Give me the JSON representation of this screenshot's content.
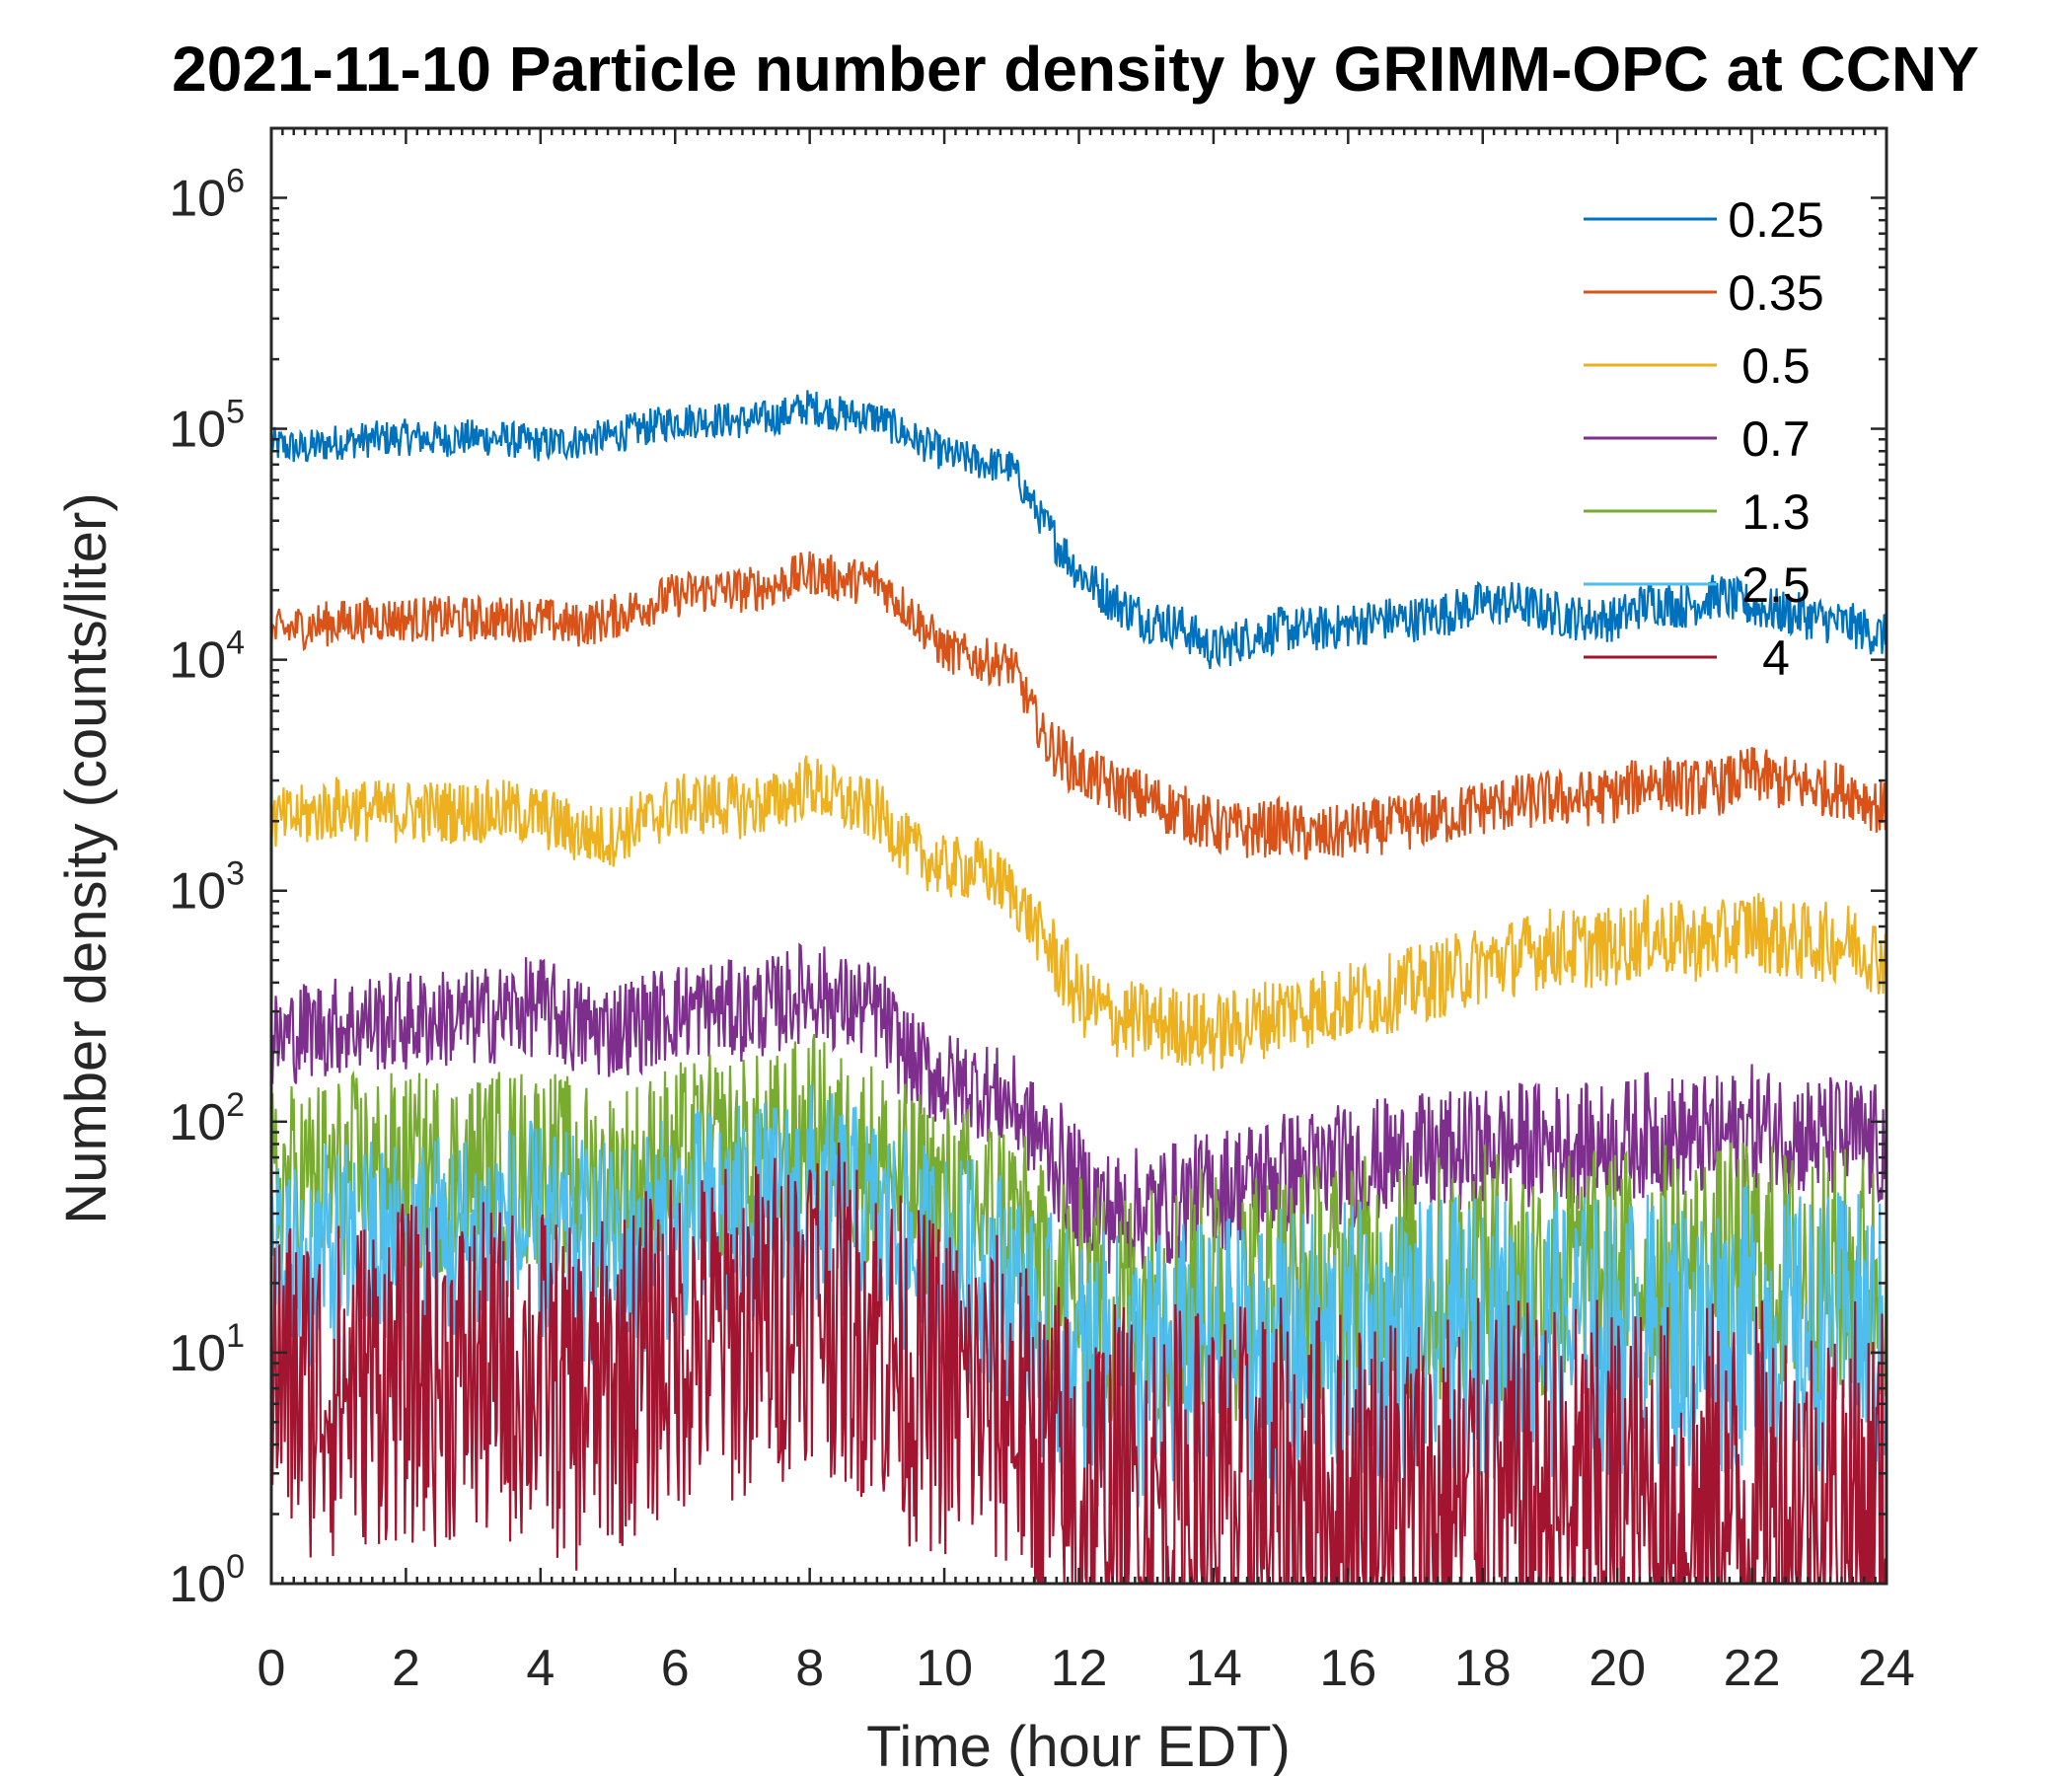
{
  "chart_data": {
    "type": "line",
    "title": "2021-11-10 Particle number density by GRIMM-OPC at CCNY",
    "xlabel": "Time (hour EDT)",
    "ylabel": "Number density (counts/liter)",
    "xlim": [
      0,
      24
    ],
    "ylim": [
      1,
      2000000
    ],
    "yscale": "log",
    "x_ticks": [
      "0",
      "2",
      "4",
      "6",
      "8",
      "10",
      "12",
      "14",
      "16",
      "18",
      "20",
      "22",
      "24"
    ],
    "y_ticks": [
      {
        "base": "10",
        "exp": "0"
      },
      {
        "base": "10",
        "exp": "1"
      },
      {
        "base": "10",
        "exp": "2"
      },
      {
        "base": "10",
        "exp": "3"
      },
      {
        "base": "10",
        "exp": "4"
      },
      {
        "base": "10",
        "exp": "5"
      },
      {
        "base": "10",
        "exp": "6"
      }
    ],
    "grid": false,
    "legend_position": "top-right",
    "x": [
      0,
      0.5,
      1,
      1.5,
      2,
      2.5,
      3,
      3.5,
      4,
      4.5,
      5,
      5.5,
      6,
      6.5,
      7,
      7.5,
      8,
      8.5,
      9,
      9.5,
      10,
      10.5,
      11,
      11.5,
      12,
      12.5,
      13,
      13.5,
      14,
      14.5,
      15,
      15.5,
      16,
      16.5,
      17,
      17.5,
      18,
      18.5,
      19,
      19.5,
      20,
      20.5,
      21,
      21.5,
      22,
      22.5,
      23,
      23.5,
      24
    ],
    "series": [
      {
        "name": "0.25",
        "color": "#0072bd",
        "values": [
          85000,
          82000,
          88000,
          90000,
          92000,
          90000,
          92000,
          90000,
          86000,
          88000,
          92000,
          100000,
          108000,
          110000,
          108000,
          112000,
          125000,
          115000,
          112000,
          92000,
          78000,
          72000,
          68000,
          38000,
          24000,
          18000,
          15000,
          14000,
          11000,
          12500,
          13500,
          13500,
          14000,
          15000,
          15000,
          16000,
          17500,
          17500,
          16000,
          15000,
          15000,
          18000,
          17000,
          19000,
          17000,
          16000,
          15000,
          14000,
          12500
        ]
      },
      {
        "name": "0.35",
        "color": "#d95319",
        "values": [
          13000,
          14000,
          14500,
          15000,
          15000,
          15000,
          15000,
          15000,
          15000,
          14000,
          15000,
          17000,
          19000,
          20000,
          20000,
          21000,
          24000,
          22000,
          22000,
          16000,
          11000,
          10000,
          9500,
          4500,
          3300,
          2800,
          2500,
          2200,
          1900,
          1800,
          1900,
          1700,
          1800,
          1900,
          2000,
          2100,
          2300,
          2400,
          2500,
          2500,
          2600,
          3000,
          2800,
          2800,
          3200,
          2900,
          2800,
          2700,
          2200
        ]
      },
      {
        "name": "0.5",
        "color": "#edb120",
        "values": [
          2000,
          2100,
          2300,
          2200,
          2200,
          2200,
          2200,
          2200,
          2100,
          1800,
          1700,
          2000,
          2300,
          2400,
          2300,
          2400,
          2900,
          2400,
          2200,
          1500,
          1250,
          1250,
          1000,
          600,
          350,
          280,
          270,
          260,
          240,
          260,
          300,
          310,
          330,
          350,
          390,
          430,
          480,
          520,
          570,
          560,
          570,
          650,
          600,
          600,
          700,
          600,
          600,
          600,
          500
        ]
      },
      {
        "name": "0.7",
        "color": "#7e2f8e",
        "values": [
          220,
          250,
          260,
          270,
          270,
          280,
          280,
          300,
          320,
          260,
          250,
          270,
          300,
          310,
          300,
          320,
          380,
          320,
          300,
          180,
          150,
          140,
          120,
          80,
          50,
          40,
          42,
          45,
          50,
          55,
          60,
          62,
          65,
          68,
          70,
          72,
          75,
          80,
          80,
          78,
          80,
          90,
          85,
          85,
          95,
          90,
          85,
          85,
          75
        ]
      },
      {
        "name": "1.3",
        "color": "#77ac30",
        "values": [
          50,
          55,
          58,
          60,
          58,
          60,
          60,
          62,
          65,
          55,
          52,
          58,
          65,
          70,
          70,
          72,
          90,
          72,
          68,
          50,
          45,
          42,
          40,
          22,
          16,
          15,
          16,
          17,
          18,
          18,
          19,
          19,
          20,
          20,
          21,
          20,
          22,
          22,
          22,
          21,
          22,
          23,
          22,
          22,
          24,
          22,
          22,
          22,
          20
        ]
      },
      {
        "name": "2.5",
        "color": "#4dbeee",
        "values": [
          22,
          24,
          26,
          28,
          28,
          30,
          30,
          32,
          32,
          28,
          26,
          30,
          35,
          38,
          38,
          40,
          48,
          40,
          35,
          28,
          24,
          22,
          20,
          10,
          8,
          8,
          8,
          9,
          9,
          10,
          10,
          10,
          11,
          11,
          11,
          11,
          12,
          12,
          12,
          12,
          12,
          12,
          12,
          12,
          13,
          12,
          12,
          12,
          11
        ]
      },
      {
        "name": "4",
        "color": "#a2142f",
        "values": [
          8,
          7,
          7,
          8,
          8,
          8,
          8,
          8,
          8,
          6,
          7,
          9,
          11,
          12,
          12,
          14,
          20,
          14,
          12,
          8,
          7,
          6,
          6,
          3,
          2,
          2,
          2,
          2,
          2,
          2,
          2,
          2,
          2,
          2,
          2,
          2,
          2,
          2,
          2,
          2,
          2,
          2,
          2,
          2,
          2,
          2,
          2,
          2,
          2
        ]
      }
    ]
  }
}
